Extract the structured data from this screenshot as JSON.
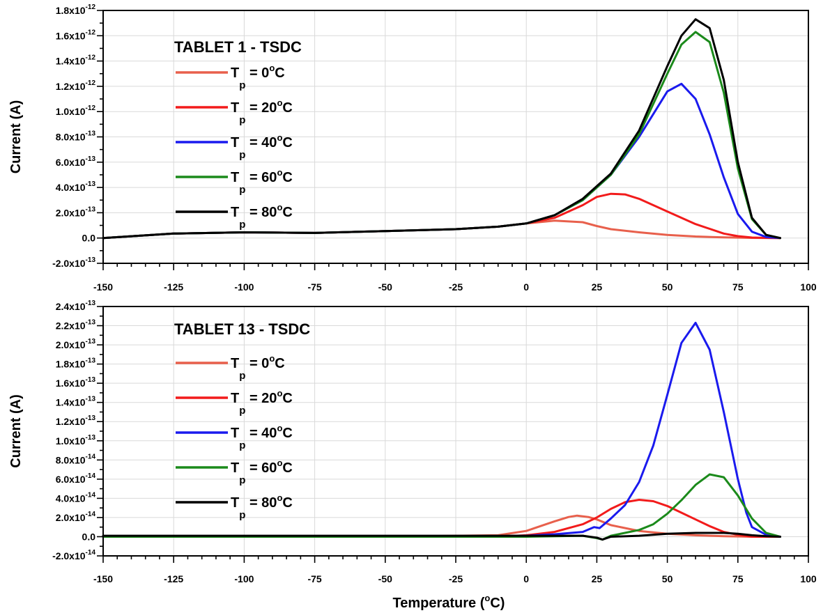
{
  "chart_data": [
    {
      "type": "line",
      "title": "TABLET 1 - TSDC",
      "xlabel": "",
      "ylabel": "Current (A)",
      "xlim": [
        -150,
        100
      ],
      "ylim": [
        -2e-13,
        1.8e-12
      ],
      "x_ticks": [
        -150,
        -125,
        -100,
        -75,
        -50,
        -25,
        0,
        25,
        50,
        75,
        100
      ],
      "y_ticks": [
        {
          "value": -2e-13,
          "mant": "-2.0x10",
          "exp": "-13"
        },
        {
          "value": 0,
          "mant": "0.0",
          "exp": ""
        },
        {
          "value": 2e-13,
          "mant": "2.0x10",
          "exp": "-13"
        },
        {
          "value": 4e-13,
          "mant": "4.0x10",
          "exp": "-13"
        },
        {
          "value": 6e-13,
          "mant": "6.0x10",
          "exp": "-13"
        },
        {
          "value": 8e-13,
          "mant": "8.0x10",
          "exp": "-13"
        },
        {
          "value": 1e-12,
          "mant": "1.0x10",
          "exp": "-12"
        },
        {
          "value": 1.2e-12,
          "mant": "1.2x10",
          "exp": "-12"
        },
        {
          "value": 1.4e-12,
          "mant": "1.4x10",
          "exp": "-12"
        },
        {
          "value": 1.6e-12,
          "mant": "1.6x10",
          "exp": "-12"
        },
        {
          "value": 1.8e-12,
          "mant": "1.8x10",
          "exp": "-12"
        }
      ],
      "grid": true,
      "legend_position": "top-left",
      "series": [
        {
          "name": "T_p = 0°C",
          "legend": {
            "main": "T",
            "sub": "p",
            "rest": " = 0",
            "deg": "o",
            "unit": "C"
          },
          "color": "#e8604c",
          "x": [
            -150,
            -125,
            -100,
            -75,
            -50,
            -25,
            -10,
            0,
            10,
            20,
            25,
            30,
            40,
            50,
            60,
            70,
            80,
            90
          ],
          "y": [
            0,
            3.5e-14,
            4.5e-14,
            4e-14,
            5.5e-14,
            7e-14,
            9e-14,
            1.15e-13,
            1.38e-13,
            1.25e-13,
            9.5e-14,
            7e-14,
            4.5e-14,
            2.5e-14,
            1.2e-14,
            5e-15,
            1e-15,
            0
          ]
        },
        {
          "name": "T_p = 20°C",
          "legend": {
            "main": "T",
            "sub": "p",
            "rest": " = 20",
            "deg": "o",
            "unit": "C"
          },
          "color": "#f21b1b",
          "x": [
            -150,
            -125,
            -100,
            -75,
            -50,
            -25,
            -10,
            0,
            10,
            20,
            25,
            30,
            35,
            40,
            50,
            60,
            70,
            75,
            80,
            85,
            90
          ],
          "y": [
            0,
            3.5e-14,
            4.5e-14,
            4e-14,
            5.5e-14,
            7e-14,
            9e-14,
            1.15e-13,
            1.6e-13,
            2.6e-13,
            3.25e-13,
            3.5e-13,
            3.45e-13,
            3.1e-13,
            2.1e-13,
            1.1e-13,
            3.5e-14,
            1.5e-14,
            4e-15,
            1e-15,
            0
          ]
        },
        {
          "name": "T_p = 40°C",
          "legend": {
            "main": "T",
            "sub": "p",
            "rest": " = 40",
            "deg": "o",
            "unit": "C"
          },
          "color": "#1a1aee",
          "x": [
            -150,
            -125,
            -100,
            -75,
            -50,
            -25,
            -10,
            0,
            10,
            20,
            30,
            40,
            45,
            50,
            55,
            60,
            65,
            70,
            75,
            80,
            85,
            90
          ],
          "y": [
            0,
            3.5e-14,
            4.5e-14,
            4e-14,
            5.5e-14,
            7e-14,
            9e-14,
            1.15e-13,
            1.8e-13,
            3e-13,
            5e-13,
            8e-13,
            9.8e-13,
            1.16e-12,
            1.22e-12,
            1.1e-12,
            8.2e-13,
            4.8e-13,
            1.9e-13,
            5e-14,
            8e-15,
            0
          ]
        },
        {
          "name": "T_p = 60°C",
          "legend": {
            "main": "T",
            "sub": "p",
            "rest": " = 60",
            "deg": "o",
            "unit": "C"
          },
          "color": "#1b8a1b",
          "x": [
            -150,
            -125,
            -100,
            -75,
            -50,
            -25,
            -10,
            0,
            10,
            20,
            30,
            40,
            50,
            55,
            60,
            65,
            70,
            75,
            80,
            85,
            90
          ],
          "y": [
            0,
            3.5e-14,
            4.5e-14,
            4e-14,
            5.5e-14,
            7e-14,
            9e-14,
            1.15e-13,
            1.8e-13,
            3e-13,
            5e-13,
            8.2e-13,
            1.3e-12,
            1.53e-12,
            1.63e-12,
            1.55e-12,
            1.15e-12,
            5.5e-13,
            1.5e-13,
            2.5e-14,
            0
          ]
        },
        {
          "name": "T_p = 80°C",
          "legend": {
            "main": "T",
            "sub": "p",
            "rest": " = 80",
            "deg": "o",
            "unit": "C"
          },
          "color": "#000000",
          "x": [
            -150,
            -125,
            -100,
            -75,
            -50,
            -25,
            -10,
            0,
            10,
            20,
            30,
            40,
            50,
            55,
            60,
            65,
            70,
            75,
            80,
            85,
            90
          ],
          "y": [
            0,
            3.5e-14,
            4.5e-14,
            4e-14,
            5.5e-14,
            7e-14,
            9e-14,
            1.15e-13,
            1.8e-13,
            3.1e-13,
            5.1e-13,
            8.5e-13,
            1.36e-12,
            1.6e-12,
            1.73e-12,
            1.66e-12,
            1.25e-12,
            6e-13,
            1.6e-13,
            2.5e-14,
            0
          ]
        }
      ]
    },
    {
      "type": "line",
      "title": "TABLET 13 - TSDC",
      "xlabel": "Temperature (°C)",
      "xlabel_parts": {
        "main": "Temperature (",
        "deg": "o",
        "rest": "C)"
      },
      "ylabel": "Current (A)",
      "xlim": [
        -150,
        100
      ],
      "ylim": [
        -2e-14,
        2.4e-13
      ],
      "x_ticks": [
        -150,
        -125,
        -100,
        -75,
        -50,
        -25,
        0,
        25,
        50,
        75,
        100
      ],
      "y_ticks": [
        {
          "value": -2e-14,
          "mant": "-2.0x10",
          "exp": "-14"
        },
        {
          "value": 0,
          "mant": "0.0",
          "exp": ""
        },
        {
          "value": 2e-14,
          "mant": "2.0x10",
          "exp": "-14"
        },
        {
          "value": 4e-14,
          "mant": "4.0x10",
          "exp": "-14"
        },
        {
          "value": 6e-14,
          "mant": "6.0x10",
          "exp": "-14"
        },
        {
          "value": 8e-14,
          "mant": "8.0x10",
          "exp": "-14"
        },
        {
          "value": 1e-13,
          "mant": "1.0x10",
          "exp": "-13"
        },
        {
          "value": 1.2e-13,
          "mant": "1.2x10",
          "exp": "-13"
        },
        {
          "value": 1.4e-13,
          "mant": "1.4x10",
          "exp": "-13"
        },
        {
          "value": 1.6e-13,
          "mant": "1.6x10",
          "exp": "-13"
        },
        {
          "value": 1.8e-13,
          "mant": "1.8x10",
          "exp": "-13"
        },
        {
          "value": 2e-13,
          "mant": "2.0x10",
          "exp": "-13"
        },
        {
          "value": 2.2e-13,
          "mant": "2.2x10",
          "exp": "-13"
        },
        {
          "value": 2.4e-13,
          "mant": "2.4x10",
          "exp": "-13"
        }
      ],
      "grid": true,
      "legend_position": "top-left",
      "series": [
        {
          "name": "T_p = 0°C",
          "legend": {
            "main": "T",
            "sub": "p",
            "rest": " = 0",
            "deg": "o",
            "unit": "C"
          },
          "color": "#e8604c",
          "x": [
            -150,
            -100,
            -50,
            -10,
            0,
            5,
            10,
            15,
            18,
            22,
            25,
            30,
            40,
            50,
            60,
            70,
            80,
            90
          ],
          "y": [
            0,
            0,
            0,
            1.5e-15,
            6e-15,
            1.1e-14,
            1.6e-14,
            2.05e-14,
            2.2e-14,
            2.05e-14,
            1.8e-14,
            1.2e-14,
            6e-15,
            3e-15,
            1.5e-15,
            5e-16,
            0,
            0
          ]
        },
        {
          "name": "T_p = 20°C",
          "legend": {
            "main": "T",
            "sub": "p",
            "rest": " = 20",
            "deg": "o",
            "unit": "C"
          },
          "color": "#f21b1b",
          "x": [
            -150,
            -100,
            -50,
            -10,
            0,
            10,
            20,
            25,
            30,
            35,
            40,
            45,
            50,
            55,
            60,
            65,
            70,
            75,
            80,
            90
          ],
          "y": [
            0,
            0,
            0,
            0,
            1.5e-15,
            5e-15,
            1.3e-14,
            2e-14,
            2.9e-14,
            3.6e-14,
            3.85e-14,
            3.7e-14,
            3.2e-14,
            2.5e-14,
            1.8e-14,
            1.1e-14,
            5e-15,
            2e-15,
            0,
            0
          ]
        },
        {
          "name": "T_p = 40°C",
          "legend": {
            "main": "T",
            "sub": "p",
            "rest": " = 40",
            "deg": "o",
            "unit": "C"
          },
          "color": "#1a1aee",
          "x": [
            -150,
            -100,
            -50,
            -25,
            0,
            10,
            20,
            24,
            26,
            30,
            35,
            40,
            45,
            50,
            55,
            60,
            65,
            70,
            75,
            78,
            80,
            85,
            90
          ],
          "y": [
            0,
            0,
            0,
            0,
            1e-15,
            2.5e-15,
            5e-15,
            1e-14,
            9e-15,
            1.9e-14,
            3.3e-14,
            5.7e-14,
            9.5e-14,
            1.48e-13,
            2.02e-13,
            2.23e-13,
            1.95e-13,
            1.3e-13,
            6e-14,
            2.5e-14,
            1e-14,
            2e-15,
            0
          ]
        },
        {
          "name": "T_p = 60°C",
          "legend": {
            "main": "T",
            "sub": "p",
            "rest": " = 60",
            "deg": "o",
            "unit": "C"
          },
          "color": "#1b8a1b",
          "x": [
            -150,
            -100,
            -50,
            -25,
            0,
            20,
            25,
            27,
            30,
            40,
            45,
            50,
            55,
            60,
            65,
            70,
            75,
            80,
            85,
            90
          ],
          "y": [
            0,
            0,
            0,
            0,
            0,
            1e-15,
            -1.5e-15,
            -3e-15,
            1e-15,
            7e-15,
            1.3e-14,
            2.4e-14,
            3.8e-14,
            5.4e-14,
            6.5e-14,
            6.2e-14,
            4.3e-14,
            1.9e-14,
            4e-15,
            0
          ]
        },
        {
          "name": "T_p = 80°C",
          "legend": {
            "main": "T",
            "sub": "p",
            "rest": " = 80",
            "deg": "o",
            "unit": "C"
          },
          "color": "#000000",
          "x": [
            -150,
            -125,
            -100,
            -75,
            -50,
            -25,
            0,
            20,
            25,
            27,
            30,
            40,
            50,
            60,
            70,
            75,
            80,
            85,
            90
          ],
          "y": [
            1e-15,
            1e-15,
            1e-15,
            1e-15,
            1e-15,
            1e-15,
            1e-15,
            1e-15,
            -1e-15,
            -3e-15,
            0,
            1e-15,
            3e-15,
            4e-15,
            4e-15,
            3e-15,
            1.5e-15,
            5e-16,
            0
          ]
        }
      ]
    }
  ]
}
